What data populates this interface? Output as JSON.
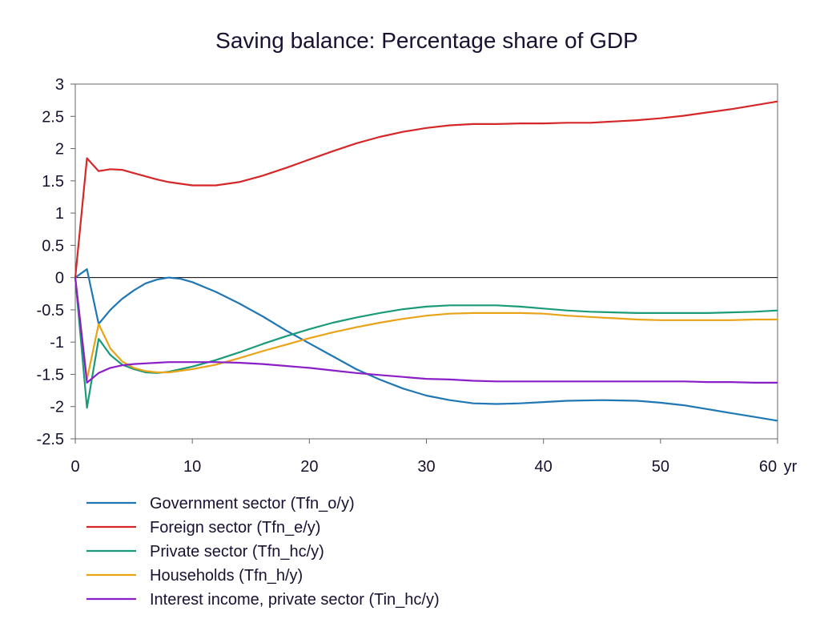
{
  "chart_data": {
    "type": "line",
    "title": "Saving balance: Percentage share of GDP",
    "x_unit": "yr",
    "xlim": [
      0,
      60
    ],
    "ylim": [
      -2.5,
      3
    ],
    "x_ticks": [
      0,
      10,
      20,
      30,
      40,
      50,
      60
    ],
    "y_ticks": [
      -2.5,
      -2,
      -1.5,
      -1,
      -0.5,
      0,
      0.5,
      1,
      1.5,
      2,
      2.5,
      3
    ],
    "zero_line": true,
    "grid": false,
    "legend_position": "bottom",
    "series": [
      {
        "name": "Government sector (Tfn_o/y)",
        "color": "#1f77b4",
        "points": [
          [
            0,
            0
          ],
          [
            1,
            0.13
          ],
          [
            2,
            -0.72
          ],
          [
            3,
            -0.5
          ],
          [
            4,
            -0.33
          ],
          [
            5,
            -0.2
          ],
          [
            6,
            -0.09
          ],
          [
            7,
            -0.03
          ],
          [
            8,
            0
          ],
          [
            9,
            -0.02
          ],
          [
            10,
            -0.07
          ],
          [
            12,
            -0.22
          ],
          [
            14,
            -0.4
          ],
          [
            16,
            -0.6
          ],
          [
            18,
            -0.82
          ],
          [
            20,
            -1.02
          ],
          [
            22,
            -1.22
          ],
          [
            24,
            -1.42
          ],
          [
            26,
            -1.58
          ],
          [
            28,
            -1.72
          ],
          [
            30,
            -1.83
          ],
          [
            32,
            -1.9
          ],
          [
            34,
            -1.95
          ],
          [
            36,
            -1.96
          ],
          [
            38,
            -1.95
          ],
          [
            40,
            -1.93
          ],
          [
            42,
            -1.91
          ],
          [
            45,
            -1.9
          ],
          [
            48,
            -1.91
          ],
          [
            50,
            -1.94
          ],
          [
            52,
            -1.98
          ],
          [
            54,
            -2.04
          ],
          [
            56,
            -2.1
          ],
          [
            58,
            -2.16
          ],
          [
            60,
            -2.22
          ]
        ]
      },
      {
        "name": "Foreign sector (Tfn_e/y)",
        "color": "#d62728",
        "points": [
          [
            0,
            0
          ],
          [
            1,
            1.85
          ],
          [
            2,
            1.65
          ],
          [
            3,
            1.68
          ],
          [
            4,
            1.67
          ],
          [
            5,
            1.62
          ],
          [
            6,
            1.57
          ],
          [
            7,
            1.52
          ],
          [
            8,
            1.48
          ],
          [
            10,
            1.43
          ],
          [
            12,
            1.43
          ],
          [
            14,
            1.48
          ],
          [
            16,
            1.58
          ],
          [
            18,
            1.7
          ],
          [
            20,
            1.83
          ],
          [
            22,
            1.96
          ],
          [
            24,
            2.08
          ],
          [
            26,
            2.18
          ],
          [
            28,
            2.26
          ],
          [
            30,
            2.32
          ],
          [
            32,
            2.36
          ],
          [
            34,
            2.38
          ],
          [
            36,
            2.38
          ],
          [
            38,
            2.39
          ],
          [
            40,
            2.39
          ],
          [
            42,
            2.4
          ],
          [
            44,
            2.4
          ],
          [
            46,
            2.42
          ],
          [
            48,
            2.44
          ],
          [
            50,
            2.47
          ],
          [
            52,
            2.51
          ],
          [
            54,
            2.56
          ],
          [
            56,
            2.61
          ],
          [
            58,
            2.67
          ],
          [
            60,
            2.73
          ]
        ]
      },
      {
        "name": "Private sector (Tfn_hc/y)",
        "color": "#1a9a78",
        "points": [
          [
            0,
            0
          ],
          [
            1,
            -2.02
          ],
          [
            2,
            -0.95
          ],
          [
            3,
            -1.2
          ],
          [
            4,
            -1.35
          ],
          [
            5,
            -1.42
          ],
          [
            6,
            -1.47
          ],
          [
            7,
            -1.48
          ],
          [
            8,
            -1.46
          ],
          [
            10,
            -1.38
          ],
          [
            12,
            -1.28
          ],
          [
            14,
            -1.16
          ],
          [
            16,
            -1.03
          ],
          [
            18,
            -0.91
          ],
          [
            20,
            -0.8
          ],
          [
            22,
            -0.7
          ],
          [
            24,
            -0.62
          ],
          [
            26,
            -0.55
          ],
          [
            28,
            -0.49
          ],
          [
            30,
            -0.45
          ],
          [
            32,
            -0.43
          ],
          [
            34,
            -0.43
          ],
          [
            36,
            -0.43
          ],
          [
            38,
            -0.45
          ],
          [
            40,
            -0.48
          ],
          [
            42,
            -0.51
          ],
          [
            44,
            -0.53
          ],
          [
            46,
            -0.54
          ],
          [
            48,
            -0.55
          ],
          [
            50,
            -0.55
          ],
          [
            52,
            -0.55
          ],
          [
            54,
            -0.55
          ],
          [
            56,
            -0.54
          ],
          [
            58,
            -0.53
          ],
          [
            60,
            -0.51
          ]
        ]
      },
      {
        "name": "Households (Tfn_h/y)",
        "color": "#e8a317",
        "points": [
          [
            0,
            0
          ],
          [
            1,
            -1.58
          ],
          [
            2,
            -0.72
          ],
          [
            3,
            -1.1
          ],
          [
            4,
            -1.3
          ],
          [
            5,
            -1.4
          ],
          [
            6,
            -1.45
          ],
          [
            7,
            -1.47
          ],
          [
            8,
            -1.47
          ],
          [
            10,
            -1.42
          ],
          [
            12,
            -1.35
          ],
          [
            14,
            -1.25
          ],
          [
            16,
            -1.14
          ],
          [
            18,
            -1.04
          ],
          [
            20,
            -0.94
          ],
          [
            22,
            -0.85
          ],
          [
            24,
            -0.77
          ],
          [
            26,
            -0.7
          ],
          [
            28,
            -0.64
          ],
          [
            30,
            -0.59
          ],
          [
            32,
            -0.56
          ],
          [
            34,
            -0.55
          ],
          [
            36,
            -0.55
          ],
          [
            38,
            -0.55
          ],
          [
            40,
            -0.56
          ],
          [
            42,
            -0.59
          ],
          [
            44,
            -0.61
          ],
          [
            46,
            -0.63
          ],
          [
            48,
            -0.65
          ],
          [
            50,
            -0.66
          ],
          [
            52,
            -0.66
          ],
          [
            54,
            -0.66
          ],
          [
            56,
            -0.66
          ],
          [
            58,
            -0.65
          ],
          [
            60,
            -0.65
          ]
        ]
      },
      {
        "name": "Interest income, private sector (Tin_hc/y)",
        "color": "#8a1fc7",
        "points": [
          [
            0,
            0
          ],
          [
            1,
            -1.63
          ],
          [
            2,
            -1.48
          ],
          [
            3,
            -1.4
          ],
          [
            4,
            -1.36
          ],
          [
            5,
            -1.34
          ],
          [
            6,
            -1.33
          ],
          [
            7,
            -1.32
          ],
          [
            8,
            -1.31
          ],
          [
            10,
            -1.31
          ],
          [
            12,
            -1.31
          ],
          [
            14,
            -1.32
          ],
          [
            16,
            -1.34
          ],
          [
            18,
            -1.37
          ],
          [
            20,
            -1.4
          ],
          [
            22,
            -1.44
          ],
          [
            24,
            -1.48
          ],
          [
            26,
            -1.51
          ],
          [
            28,
            -1.54
          ],
          [
            30,
            -1.57
          ],
          [
            32,
            -1.58
          ],
          [
            34,
            -1.6
          ],
          [
            36,
            -1.61
          ],
          [
            38,
            -1.61
          ],
          [
            40,
            -1.61
          ],
          [
            44,
            -1.61
          ],
          [
            48,
            -1.61
          ],
          [
            50,
            -1.61
          ],
          [
            52,
            -1.61
          ],
          [
            54,
            -1.62
          ],
          [
            56,
            -1.62
          ],
          [
            58,
            -1.63
          ],
          [
            60,
            -1.63
          ]
        ]
      }
    ]
  }
}
